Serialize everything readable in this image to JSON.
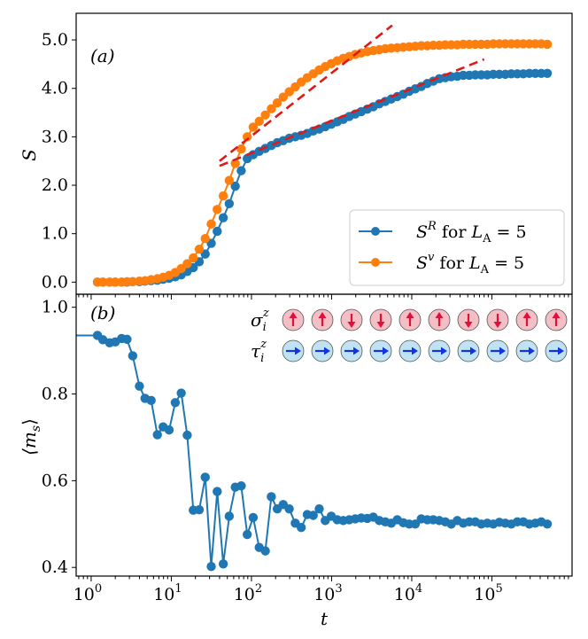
{
  "chart_data": [
    {
      "type": "line",
      "panel_label": "(a)",
      "ylabel": "S",
      "xlabel": "",
      "xscale": "log",
      "xlim": [
        0.65,
        1000000
      ],
      "ylim": [
        -0.25,
        5.55
      ],
      "yticks": [
        "0.0",
        "1.0",
        "2.0",
        "3.0",
        "4.0",
        "5.0"
      ],
      "legend_position": "lower-right",
      "series": [
        {
          "name": "S^R for L_A = 5",
          "label_main": "S",
          "label_sup": "R",
          "label_mid": " for ",
          "label_var": "L",
          "label_sub": "A",
          "label_tail": " = 5",
          "color": "#1f77b4",
          "x": [
            1.2,
            1.4,
            1.7,
            2.0,
            2.4,
            2.8,
            3.3,
            4.0,
            4.7,
            5.6,
            6.7,
            7.9,
            9.4,
            11.2,
            13.3,
            15.8,
            18.8,
            22.3,
            26.5,
            31.5,
            37.4,
            44.5,
            52.8,
            62.8,
            74.6,
            88.6,
            105,
            125,
            149,
            177,
            210,
            249,
            296,
            352,
            418,
            497,
            590,
            701,
            833,
            990,
            1176,
            1397,
            1660,
            1973,
            2344,
            2785,
            3309,
            3932,
            4671,
            5550,
            6595,
            7836,
            9310,
            11062,
            13144,
            15617,
            18556,
            22048,
            26197,
            31126,
            36983,
            43943,
            52212,
            62037,
            73711,
            87582,
            104063,
            123645,
            146912,
            174557,
            207405,
            246434,
            292808,
            347907,
            413375,
            491163
          ],
          "values": [
            0.0,
            0.0,
            0.0,
            0.0,
            0.0,
            0.0,
            0.01,
            0.01,
            0.02,
            0.03,
            0.04,
            0.06,
            0.08,
            0.11,
            0.15,
            0.22,
            0.3,
            0.42,
            0.58,
            0.8,
            1.05,
            1.33,
            1.62,
            1.98,
            2.3,
            2.55,
            2.63,
            2.7,
            2.76,
            2.82,
            2.88,
            2.92,
            2.97,
            3.0,
            3.03,
            3.07,
            3.12,
            3.16,
            3.21,
            3.26,
            3.31,
            3.36,
            3.42,
            3.47,
            3.52,
            3.57,
            3.62,
            3.68,
            3.73,
            3.78,
            3.83,
            3.88,
            3.94,
            3.99,
            4.04,
            4.1,
            4.15,
            4.2,
            4.22,
            4.24,
            4.25,
            4.27,
            4.27,
            4.28,
            4.28,
            4.28,
            4.29,
            4.29,
            4.29,
            4.3,
            4.3,
            4.3,
            4.31,
            4.31,
            4.31,
            4.31
          ]
        },
        {
          "name": "S^v for L_A = 5",
          "label_main": "S",
          "label_sup": "v",
          "label_mid": " for ",
          "label_var": "L",
          "label_sub": "A",
          "label_tail": " = 5",
          "color": "#ff7f0e",
          "x": [
            1.2,
            1.4,
            1.7,
            2.0,
            2.4,
            2.8,
            3.3,
            4.0,
            4.7,
            5.6,
            6.7,
            7.9,
            9.4,
            11.2,
            13.3,
            15.8,
            18.8,
            22.3,
            26.5,
            31.5,
            37.4,
            44.5,
            52.8,
            62.8,
            74.6,
            88.6,
            105,
            125,
            149,
            177,
            210,
            249,
            296,
            352,
            418,
            497,
            590,
            701,
            833,
            990,
            1176,
            1397,
            1660,
            1973,
            2344,
            2785,
            3309,
            3932,
            4671,
            5550,
            6595,
            7836,
            9310,
            11062,
            13144,
            15617,
            18556,
            22048,
            26197,
            31126,
            36983,
            43943,
            52212,
            62037,
            73711,
            87582,
            104063,
            123645,
            146912,
            174557,
            207405,
            246434,
            292808,
            347907,
            413375,
            491163
          ],
          "values": [
            0.0,
            0.0,
            0.0,
            0.0,
            0.0,
            0.01,
            0.01,
            0.02,
            0.03,
            0.05,
            0.07,
            0.1,
            0.14,
            0.2,
            0.28,
            0.38,
            0.5,
            0.68,
            0.9,
            1.2,
            1.5,
            1.78,
            2.1,
            2.45,
            2.75,
            3.0,
            3.2,
            3.32,
            3.45,
            3.58,
            3.7,
            3.82,
            3.93,
            4.03,
            4.13,
            4.22,
            4.3,
            4.38,
            4.45,
            4.51,
            4.57,
            4.62,
            4.66,
            4.7,
            4.73,
            4.76,
            4.78,
            4.8,
            4.82,
            4.83,
            4.84,
            4.85,
            4.86,
            4.87,
            4.88,
            4.88,
            4.89,
            4.89,
            4.9,
            4.9,
            4.9,
            4.91,
            4.91,
            4.91,
            4.91,
            4.91,
            4.92,
            4.92,
            4.92,
            4.92,
            4.92,
            4.92,
            4.92,
            4.92,
            4.92,
            4.91
          ]
        }
      ],
      "guide_lines": [
        {
          "color": "#e01818",
          "x": [
            40,
            5700
          ],
          "values": [
            2.5,
            5.3
          ]
        },
        {
          "color": "#e01818",
          "x": [
            40,
            80000
          ],
          "values": [
            2.4,
            4.6
          ]
        }
      ]
    },
    {
      "type": "line",
      "panel_label": "(b)",
      "ylabel": "⟨m_s⟩",
      "ylabel_main": "⟨m",
      "ylabel_sub": "s",
      "ylabel_tail": "⟩",
      "xlabel": "t",
      "xscale": "log",
      "xlim": [
        0.65,
        1000000
      ],
      "ylim": [
        0.38,
        1.03
      ],
      "yticks": [
        "0.4",
        "0.6",
        "0.8",
        "1.0"
      ],
      "xtick_values": [
        1,
        10,
        100,
        1000,
        10000,
        100000
      ],
      "xticks": [
        {
          "base": "10",
          "exp": "0"
        },
        {
          "base": "10",
          "exp": "1"
        },
        {
          "base": "10",
          "exp": "2"
        },
        {
          "base": "10",
          "exp": "3"
        },
        {
          "base": "10",
          "exp": "4"
        },
        {
          "base": "10",
          "exp": "5"
        }
      ],
      "initial_value": 0.935,
      "series": [
        {
          "name": "m_s",
          "color": "#1f77b4",
          "x": [
            1.2,
            1.4,
            1.7,
            2.0,
            2.4,
            2.8,
            3.3,
            4.0,
            4.7,
            5.6,
            6.7,
            7.9,
            9.4,
            11.2,
            13.3,
            15.8,
            18.8,
            22.3,
            26.5,
            31.5,
            37.4,
            44.5,
            52.8,
            62.8,
            74.6,
            88.6,
            105,
            125,
            149,
            177,
            210,
            249,
            296,
            352,
            418,
            497,
            590,
            701,
            833,
            990,
            1176,
            1397,
            1660,
            1973,
            2344,
            2785,
            3309,
            3932,
            4671,
            5550,
            6595,
            7836,
            9310,
            11062,
            13144,
            15617,
            18556,
            22048,
            26197,
            31126,
            36983,
            43943,
            52212,
            62037,
            73711,
            87582,
            104063,
            123645,
            146912,
            174557,
            207405,
            246434,
            292808,
            347907,
            413375,
            491163
          ],
          "values": [
            0.935,
            0.925,
            0.918,
            0.92,
            0.928,
            0.926,
            0.888,
            0.818,
            0.79,
            0.785,
            0.706,
            0.724,
            0.717,
            0.78,
            0.802,
            0.705,
            0.532,
            0.533,
            0.608,
            0.402,
            0.575,
            0.408,
            0.518,
            0.585,
            0.588,
            0.476,
            0.515,
            0.446,
            0.438,
            0.563,
            0.535,
            0.545,
            0.535,
            0.502,
            0.492,
            0.522,
            0.52,
            0.535,
            0.508,
            0.518,
            0.51,
            0.508,
            0.51,
            0.512,
            0.514,
            0.513,
            0.516,
            0.508,
            0.505,
            0.502,
            0.51,
            0.503,
            0.5,
            0.5,
            0.512,
            0.51,
            0.51,
            0.508,
            0.505,
            0.5,
            0.508,
            0.502,
            0.505,
            0.505,
            0.5,
            0.502,
            0.5,
            0.504,
            0.502,
            0.5,
            0.505,
            0.505,
            0.5,
            0.502,
            0.505,
            0.5
          ]
        }
      ],
      "spin_rows": [
        {
          "label_main": "σ",
          "label_sub": "i",
          "label_sup": "z",
          "fill": "#f4bfc4",
          "arrow_color": "#e0103a",
          "directions": [
            "up",
            "up",
            "down",
            "down",
            "up",
            "up",
            "down",
            "down",
            "up",
            "up"
          ]
        },
        {
          "label_main": "τ",
          "label_sub": "i",
          "label_sup": "z",
          "fill": "#bfe3f2",
          "arrow_color": "#1433e0",
          "directions": [
            "right",
            "right",
            "right",
            "right",
            "right",
            "right",
            "right",
            "right",
            "right",
            "right"
          ]
        }
      ]
    }
  ]
}
